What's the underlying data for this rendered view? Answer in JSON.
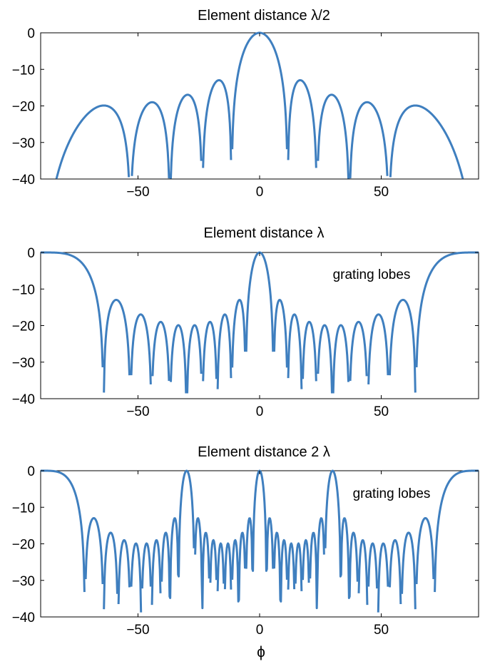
{
  "colors": {
    "line": "#3F7FBF",
    "axes": "#000000",
    "background": "#ffffff"
  },
  "chart_data": [
    {
      "type": "line",
      "title": "Element distance   λ/2",
      "xlabel": "",
      "ylabel": "",
      "xlim": [
        -90,
        90
      ],
      "ylim": [
        -40,
        0
      ],
      "xticks": [
        -50,
        0,
        50
      ],
      "yticks": [
        0,
        -10,
        -20,
        -30,
        -40
      ],
      "grid": false,
      "series": [
        {
          "N": 10,
          "spacing_wavelengths": 0.5,
          "x_step_deg": 0.25,
          "floor_db": -40
        }
      ],
      "annotation": ""
    },
    {
      "type": "line",
      "title": "Element distance   λ",
      "xlabel": "",
      "ylabel": "",
      "xlim": [
        -90,
        90
      ],
      "ylim": [
        -40,
        0
      ],
      "xticks": [
        -50,
        0,
        50
      ],
      "yticks": [
        0,
        -10,
        -20,
        -30,
        -40
      ],
      "grid": false,
      "series": [
        {
          "N": 10,
          "spacing_wavelengths": 1,
          "x_step_deg": 0.25,
          "floor_db": -40
        }
      ],
      "annotation": "grating lobes"
    },
    {
      "type": "line",
      "title": "Element distance 2   λ",
      "xlabel": "ϕ",
      "ylabel": "",
      "xlim": [
        -90,
        90
      ],
      "ylim": [
        -40,
        0
      ],
      "xticks": [
        -50,
        0,
        50
      ],
      "yticks": [
        0,
        -10,
        -20,
        -30,
        -40
      ],
      "grid": false,
      "series": [
        {
          "N": 10,
          "spacing_wavelengths": 2,
          "x_step_deg": 0.25,
          "floor_db": -40
        }
      ],
      "annotation": "grating lobes"
    }
  ]
}
